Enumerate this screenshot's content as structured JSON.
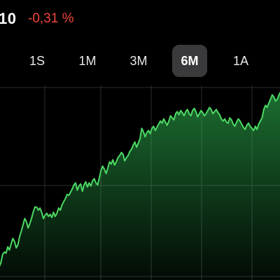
{
  "quote": {
    "price_fragment": "10",
    "change_percent": "-0,31 %",
    "change_color": "#f0463c"
  },
  "range_tabs": [
    {
      "label": "1S",
      "selected": false
    },
    {
      "label": "1M",
      "selected": false
    },
    {
      "label": "3M",
      "selected": false
    },
    {
      "label": "6M",
      "selected": true
    },
    {
      "label": "1A",
      "selected": false
    }
  ],
  "chart": {
    "line_color": "#4cd964",
    "gridline_color": "#2c2c2e",
    "series_relative": [
      0.06,
      0.1,
      0.18,
      0.2,
      0.19,
      0.25,
      0.22,
      0.28,
      0.33,
      0.3,
      0.24,
      0.27,
      0.35,
      0.4,
      0.46,
      0.52,
      0.49,
      0.43,
      0.47,
      0.52,
      0.58,
      0.63,
      0.63,
      0.6,
      0.62,
      0.58,
      0.52,
      0.55,
      0.57,
      0.54,
      0.56,
      0.53,
      0.58,
      0.54,
      0.57,
      0.62,
      0.6,
      0.65,
      0.68,
      0.71,
      0.75,
      0.74,
      0.77,
      0.8,
      0.84,
      0.86,
      0.79,
      0.83,
      0.85,
      0.78,
      0.84,
      0.87,
      0.82,
      0.86,
      0.83,
      0.88,
      0.9,
      0.86,
      0.84,
      0.91,
      0.98,
      1.02,
      0.99,
      0.95,
      1.0,
      1.06,
      1.04,
      1.08,
      1.03,
      1.06,
      1.1,
      1.12,
      1.15,
      1.13,
      1.07,
      1.1,
      1.12,
      1.16,
      1.18,
      1.22,
      1.25,
      1.2,
      1.24,
      1.28,
      1.38,
      1.35,
      1.3,
      1.34,
      1.36,
      1.33,
      1.38,
      1.4,
      1.36,
      1.39,
      1.42,
      1.45,
      1.43,
      1.47,
      1.44,
      1.41,
      1.45,
      1.5,
      1.48,
      1.46,
      1.52,
      1.54,
      1.51,
      1.55,
      1.53,
      1.5,
      1.54,
      1.56,
      1.52,
      1.5,
      1.55,
      1.57,
      1.54,
      1.49,
      1.52,
      1.55,
      1.53,
      1.5,
      1.52,
      1.55,
      1.58,
      1.56,
      1.52,
      1.54,
      1.56,
      1.53,
      1.51,
      1.47,
      1.45,
      1.47,
      1.44,
      1.43,
      1.48,
      1.46,
      1.42,
      1.4,
      1.44,
      1.47,
      1.45,
      1.42,
      1.39,
      1.37,
      1.41,
      1.43,
      1.4,
      1.38,
      1.36,
      1.4,
      1.37,
      1.42,
      1.45,
      1.48,
      1.56,
      1.6,
      1.58,
      1.62,
      1.66,
      1.7,
      1.68,
      1.64,
      1.66,
      1.7,
      1.73
    ]
  }
}
